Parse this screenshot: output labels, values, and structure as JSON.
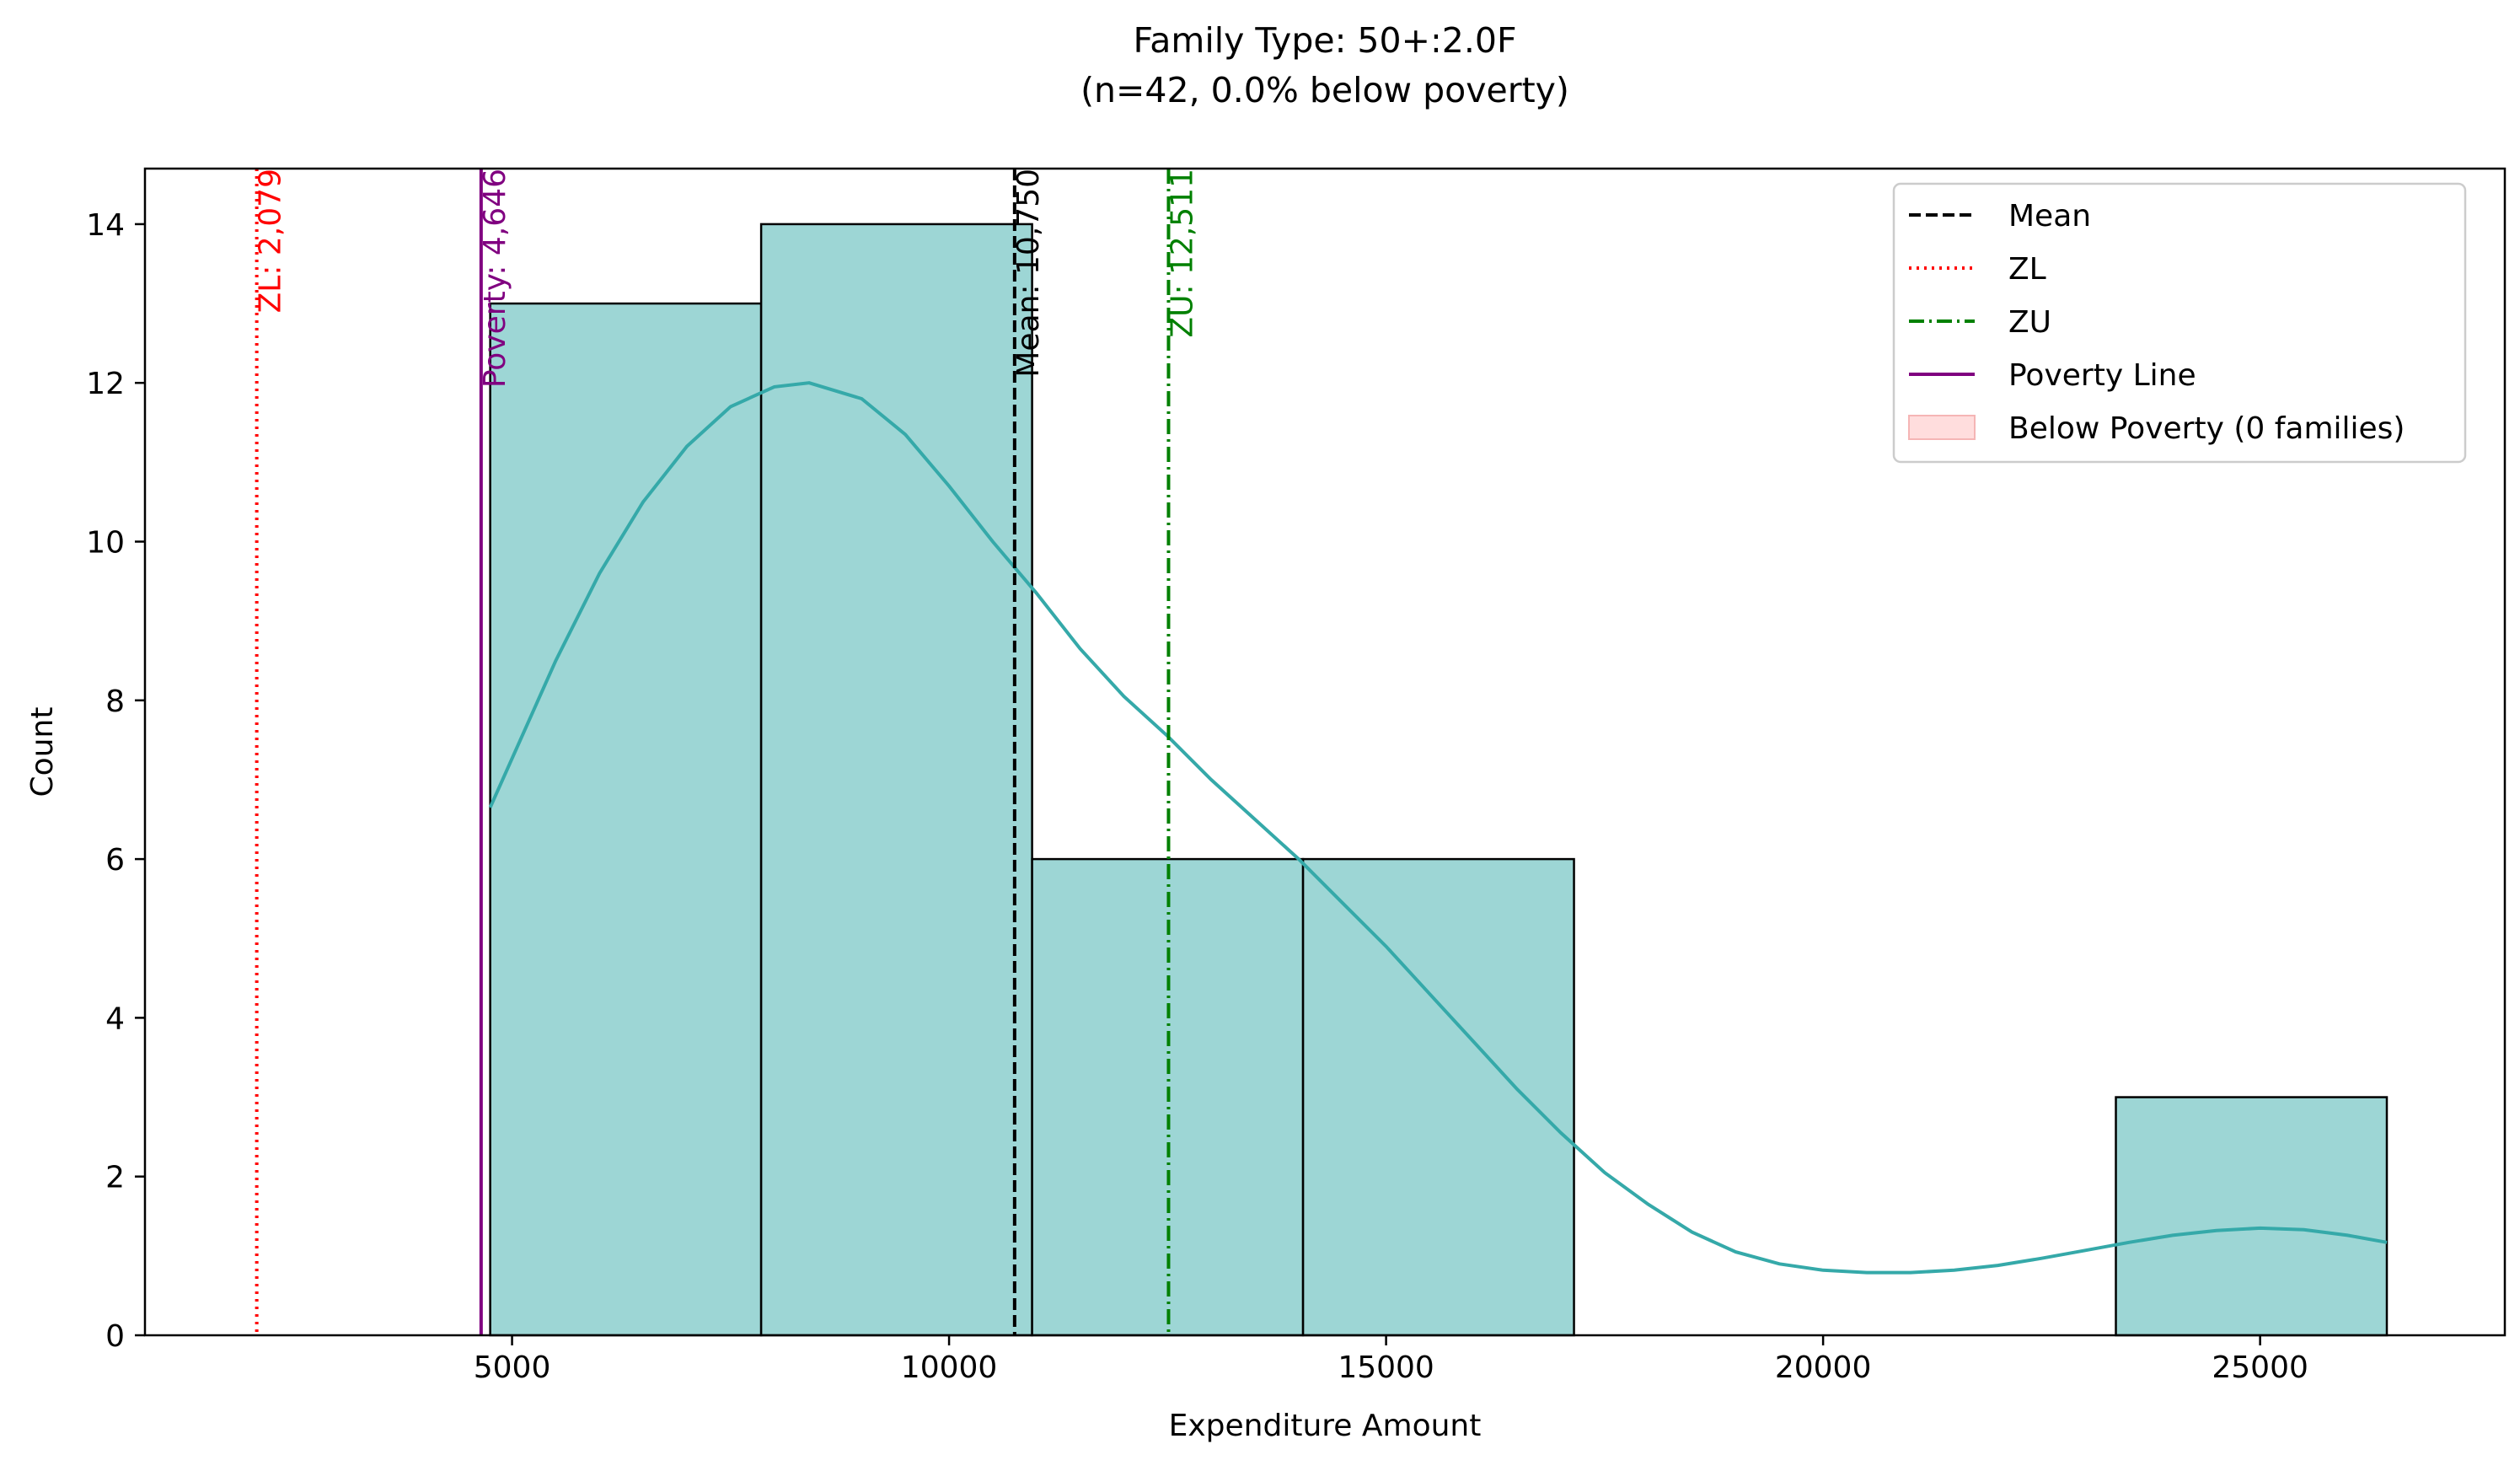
{
  "chart_data": {
    "type": "bar",
    "title": "Family Type: 50+:2.0F",
    "subtitle": "(n=42, 0.0% below poverty)",
    "xlabel": "Expenditure Amount",
    "ylabel": "Count",
    "xlim": [
      800,
      27800
    ],
    "ylim": [
      0,
      14.7
    ],
    "xticks": [
      5000,
      10000,
      15000,
      20000,
      25000
    ],
    "xtick_labels": [
      "5000",
      "10000",
      "15000",
      "20000",
      "25000"
    ],
    "yticks": [
      0,
      2,
      4,
      6,
      8,
      10,
      12,
      14
    ],
    "ytick_labels": [
      "0",
      "2",
      "4",
      "6",
      "8",
      "10",
      "12",
      "14"
    ],
    "grid": false,
    "bars": [
      {
        "x0": 4750,
        "x1": 7850,
        "count": 13
      },
      {
        "x0": 7850,
        "x1": 10950,
        "count": 14
      },
      {
        "x0": 10950,
        "x1": 14050,
        "count": 6
      },
      {
        "x0": 14050,
        "x1": 17150,
        "count": 6
      },
      {
        "x0": 17150,
        "x1": 20250,
        "count": 0
      },
      {
        "x0": 20250,
        "x1": 23350,
        "count": 0
      },
      {
        "x0": 23350,
        "x1": 26450,
        "count": 3
      }
    ],
    "bar_color": "#9dd6d5",
    "kde": {
      "color": "#35a9a9",
      "x": [
        4750,
        5500,
        6000,
        6500,
        7000,
        7500,
        8000,
        8400,
        9000,
        9500,
        10000,
        10500,
        11000,
        11500,
        12000,
        12500,
        13000,
        13500,
        14000,
        14500,
        15000,
        15500,
        16000,
        16500,
        17000,
        17500,
        18000,
        18500,
        19000,
        19500,
        20000,
        20500,
        21000,
        21500,
        22000,
        22500,
        23000,
        23500,
        24000,
        24500,
        25000,
        25500,
        26000,
        26450
      ],
      "y": [
        6.65,
        8.5,
        9.6,
        10.5,
        11.2,
        11.7,
        11.95,
        12.0,
        11.8,
        11.35,
        10.7,
        10.0,
        9.35,
        8.65,
        8.05,
        7.55,
        7.0,
        6.5,
        6.0,
        5.45,
        4.9,
        4.3,
        3.7,
        3.1,
        2.55,
        2.05,
        1.65,
        1.3,
        1.05,
        0.9,
        0.82,
        0.79,
        0.79,
        0.82,
        0.88,
        0.97,
        1.07,
        1.17,
        1.26,
        1.32,
        1.35,
        1.33,
        1.26,
        1.17
      ]
    },
    "vlines": [
      {
        "name": "Mean",
        "x": 10750,
        "label": "Mean: 10,750",
        "color": "#000000",
        "style": "dashed"
      },
      {
        "name": "ZL",
        "x": 2079,
        "label": "ZL: 2,079",
        "color": "#ff0000",
        "style": "dotted"
      },
      {
        "name": "ZU",
        "x": 12511,
        "label": "ZU: 12,511",
        "color": "#008000",
        "style": "dashdot"
      },
      {
        "name": "Poverty Line",
        "x": 4646,
        "label": "Poverty: 4,646",
        "color": "#800080",
        "style": "solid"
      }
    ],
    "legend": {
      "placement": "top-right",
      "items": [
        {
          "label": "Mean",
          "color": "#000000",
          "style": "dashed"
        },
        {
          "label": "ZL",
          "color": "#ff0000",
          "style": "dotted"
        },
        {
          "label": "ZU",
          "color": "#008000",
          "style": "dashdot"
        },
        {
          "label": "Poverty Line",
          "color": "#800080",
          "style": "solid"
        },
        {
          "label": "Below Poverty (0 families)",
          "color": "#ffdddd",
          "style": "patch"
        }
      ]
    }
  }
}
